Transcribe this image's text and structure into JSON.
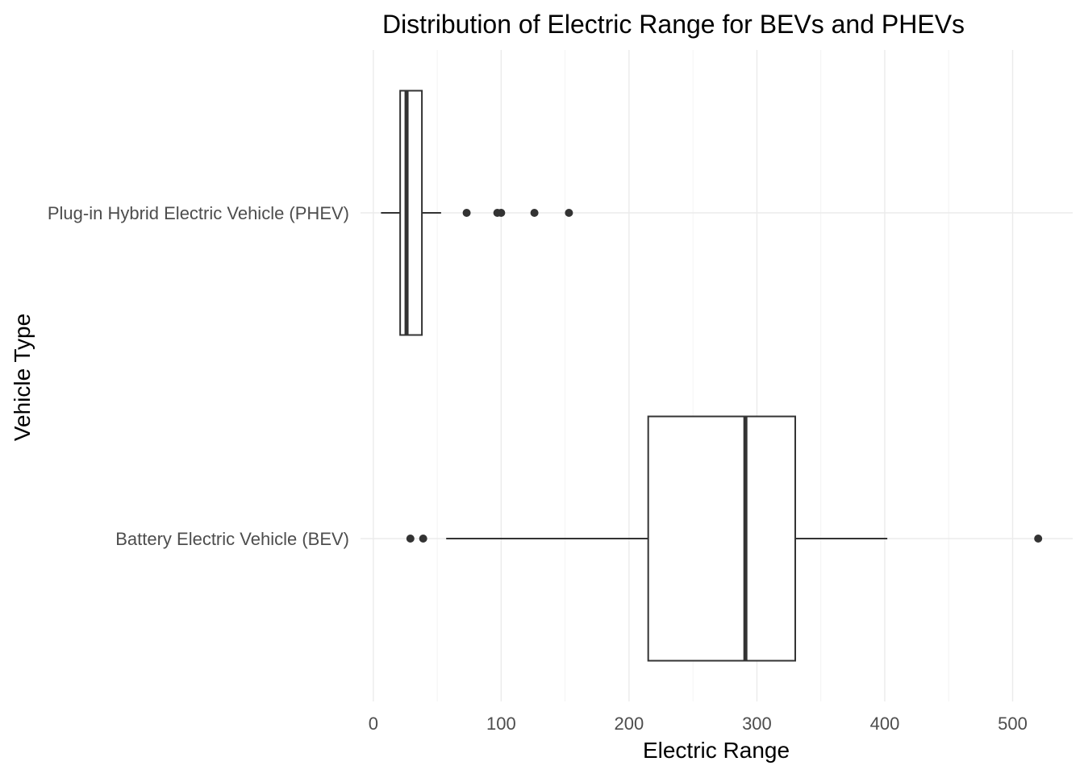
{
  "chart_data": {
    "type": "boxplot",
    "orientation": "horizontal",
    "title": "Distribution of Electric Range for BEVs and PHEVs",
    "xlabel": "Electric Range",
    "ylabel": "Vehicle Type",
    "xlim": [
      -10,
      547
    ],
    "x_ticks": [
      0,
      100,
      200,
      300,
      400,
      500
    ],
    "x_minor_ticks": [
      50,
      150,
      250,
      350,
      450
    ],
    "grid": true,
    "legend": "none",
    "categories": [
      "Battery Electric Vehicle (BEV)",
      "Plug-in Hybrid Electric Vehicle (PHEV)"
    ],
    "series": [
      {
        "category": "Battery Electric Vehicle (BEV)",
        "whisker_low": 57,
        "q1": 215,
        "median": 291,
        "q3": 330,
        "whisker_high": 402,
        "outliers": [
          29,
          39,
          520
        ]
      },
      {
        "category": "Plug-in Hybrid Electric Vehicle (PHEV)",
        "whisker_low": 6,
        "q1": 21,
        "median": 26,
        "q3": 38,
        "whisker_high": 53,
        "outliers": [
          73,
          97,
          100,
          126,
          153
        ]
      }
    ]
  }
}
